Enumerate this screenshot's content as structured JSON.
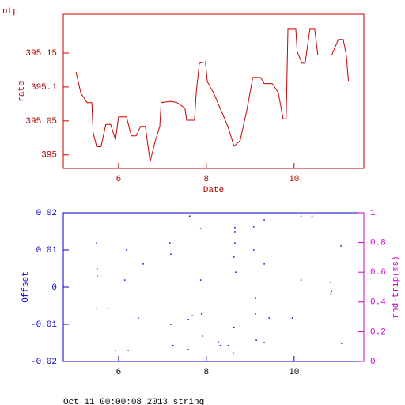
{
  "chart_data": [
    {
      "type": "line",
      "title": "ntp",
      "xlabel": "Date",
      "ylabel": "rate",
      "color": "#cc0000",
      "x": [
        5.03,
        5.14,
        5.28,
        5.39,
        5.42,
        5.5,
        5.6,
        5.71,
        5.82,
        5.93,
        6.0,
        6.18,
        6.29,
        6.4,
        6.5,
        6.61,
        6.72,
        6.83,
        6.94,
        6.97,
        7.19,
        7.33,
        7.51,
        7.55,
        7.73,
        7.77,
        7.84,
        7.98,
        8.02,
        8.16,
        8.34,
        8.49,
        8.63,
        8.77,
        8.92,
        9.06,
        9.24,
        9.32,
        9.5,
        9.64,
        9.75,
        9.82,
        9.86,
        10.04,
        10.07,
        10.18,
        10.25,
        10.36,
        10.47,
        10.54,
        10.86,
        11.01,
        11.12,
        11.19,
        11.24
      ],
      "values": [
        395.122,
        395.091,
        395.077,
        395.077,
        395.033,
        395.012,
        395.012,
        395.045,
        395.045,
        395.022,
        395.056,
        395.056,
        395.028,
        395.028,
        395.042,
        395.042,
        394.99,
        395.019,
        395.042,
        395.077,
        395.079,
        395.077,
        395.069,
        395.051,
        395.051,
        395.092,
        395.135,
        395.137,
        395.108,
        395.092,
        395.065,
        395.042,
        395.013,
        395.021,
        395.065,
        395.114,
        395.114,
        395.105,
        395.105,
        395.092,
        395.053,
        395.053,
        395.185,
        395.185,
        395.152,
        395.135,
        395.135,
        395.185,
        395.185,
        395.147,
        395.147,
        395.17,
        395.17,
        395.147,
        395.108
      ],
      "xlim": [
        4.74,
        11.59
      ],
      "ylim": [
        394.98,
        395.207
      ],
      "xticks": [
        6,
        8,
        10
      ],
      "yticks": [
        395,
        395.05,
        395.1,
        395.15
      ]
    },
    {
      "type": "scatter",
      "ylabel": "Offset",
      "y2label": "rnd-trip(ms)",
      "color": "#0000cc",
      "x": [
        5.5,
        5.51,
        5.51,
        5.5,
        5.75,
        5.93,
        6.18,
        6.14,
        6.22,
        6.45,
        6.56,
        7.17,
        7.19,
        7.19,
        7.24,
        7.59,
        7.62,
        7.59,
        7.68,
        7.87,
        7.87,
        7.89,
        7.91,
        8.27,
        8.32,
        8.5,
        8.65,
        8.65,
        8.65,
        8.63,
        8.67,
        8.63,
        8.61,
        9.08,
        9.08,
        9.12,
        9.12,
        9.14,
        9.32,
        9.32,
        9.32,
        9.43,
        10.16,
        10.16,
        10.41,
        9.96,
        10.83,
        10.85,
        10.84,
        11.07,
        11.08
      ],
      "values": [
        0.0119,
        0.0049,
        0.003,
        -0.0057,
        -0.0057,
        -0.017,
        0.01,
        0.0019,
        -0.017,
        -0.0083,
        0.0062,
        0.0119,
        0.0089,
        -0.01,
        -0.0157,
        -0.0087,
        0.0191,
        -0.0168,
        -0.0077,
        0.0157,
        0.0019,
        -0.0072,
        -0.0132,
        -0.0147,
        -0.0157,
        -0.0157,
        0.016,
        0.0149,
        0.0119,
        0.0081,
        0.004,
        -0.0109,
        -0.0177,
        0.0162,
        0.01,
        -0.003,
        -0.0072,
        -0.0143,
        0.0181,
        0.0062,
        -0.0149,
        -0.0083,
        0.0191,
        0.0019,
        0.0191,
        -0.0083,
        0.0013,
        -0.0011,
        -0.0019,
        0.0111,
        -0.0151
      ],
      "xlim": [
        4.74,
        11.59
      ],
      "ylim": [
        -0.02,
        0.02
      ],
      "y2lim": [
        0,
        1
      ],
      "xticks": [
        6,
        8,
        10
      ],
      "yticks": [
        -0.02,
        -0.01,
        0,
        0.01,
        0.02
      ],
      "y2ticks": [
        0,
        0.2,
        0.4,
        0.6,
        0.8,
        1
      ]
    }
  ],
  "footer": "Oct 11 00:00:08 2013 string"
}
